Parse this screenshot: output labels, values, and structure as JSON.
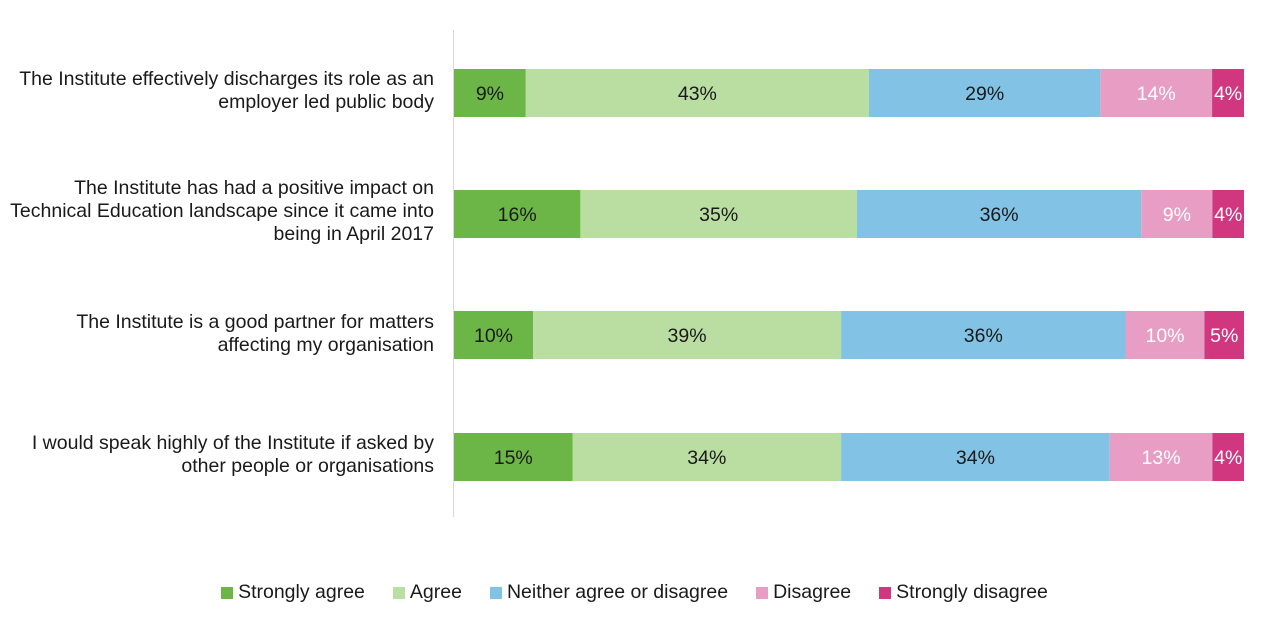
{
  "chart_data": {
    "type": "bar",
    "orientation": "horizontal",
    "stacked": "percent",
    "categories": [
      "The Institute effectively discharges its role as an employer led public body",
      "The Institute has had a positive impact on Technical Education landscape since it came into being in April 2017",
      "The Institute is a good partner for matters affecting my organisation",
      "I would speak highly of the Institute if asked by other people or organisations"
    ],
    "series": [
      {
        "name": "Strongly agree",
        "color": "#6BB646",
        "label_color": "#1a1a1a",
        "values": [
          9,
          16,
          10,
          15
        ],
        "labels": [
          "9%",
          "16%",
          "10%",
          "15%"
        ]
      },
      {
        "name": "Agree",
        "color": "#BADDA1",
        "label_color": "#1a1a1a",
        "values": [
          43,
          35,
          39,
          34
        ],
        "labels": [
          "43%",
          "35%",
          "39%",
          "34%"
        ]
      },
      {
        "name": "Neither agree or disagree",
        "color": "#82C2E4",
        "label_color": "#1a1a1a",
        "values": [
          29,
          36,
          36,
          34
        ],
        "labels": [
          "29%",
          "36%",
          "36%",
          "34%"
        ]
      },
      {
        "name": "Disagree",
        "color": "#E79DC4",
        "label_color": "#ffffff",
        "values": [
          14,
          9,
          10,
          13
        ],
        "labels": [
          "14%",
          "9%",
          "10%",
          "13%"
        ]
      },
      {
        "name": "Strongly disagree",
        "color": "#D1377E",
        "label_color": "#ffffff",
        "values": [
          4,
          4,
          5,
          4
        ],
        "labels": [
          "4%",
          "4%",
          "5%",
          "4%"
        ]
      }
    ],
    "legend": "bottom",
    "grid": false,
    "axis_color": "#d9d9d9"
  }
}
